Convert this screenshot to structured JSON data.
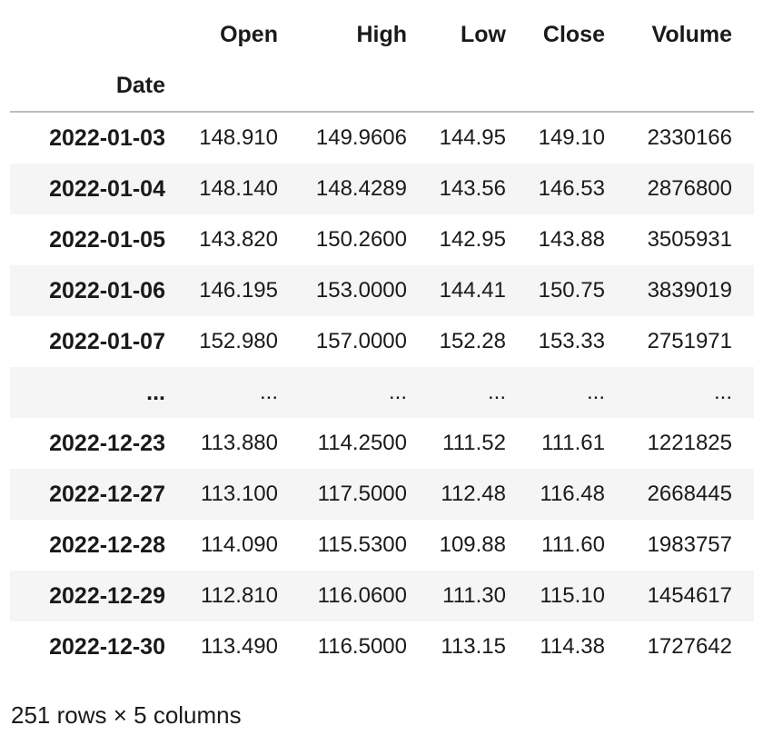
{
  "table": {
    "columns": [
      "Open",
      "High",
      "Low",
      "Close",
      "Volume"
    ],
    "index_name": "Date",
    "rows": [
      {
        "index": "2022-01-03",
        "values": [
          "148.910",
          "149.9606",
          "144.95",
          "149.10",
          "2330166"
        ]
      },
      {
        "index": "2022-01-04",
        "values": [
          "148.140",
          "148.4289",
          "143.56",
          "146.53",
          "2876800"
        ]
      },
      {
        "index": "2022-01-05",
        "values": [
          "143.820",
          "150.2600",
          "142.95",
          "143.88",
          "3505931"
        ]
      },
      {
        "index": "2022-01-06",
        "values": [
          "146.195",
          "153.0000",
          "144.41",
          "150.75",
          "3839019"
        ]
      },
      {
        "index": "2022-01-07",
        "values": [
          "152.980",
          "157.0000",
          "152.28",
          "153.33",
          "2751971"
        ]
      },
      {
        "index": "...",
        "values": [
          "...",
          "...",
          "...",
          "...",
          "..."
        ]
      },
      {
        "index": "2022-12-23",
        "values": [
          "113.880",
          "114.2500",
          "111.52",
          "111.61",
          "1221825"
        ]
      },
      {
        "index": "2022-12-27",
        "values": [
          "113.100",
          "117.5000",
          "112.48",
          "116.48",
          "2668445"
        ]
      },
      {
        "index": "2022-12-28",
        "values": [
          "114.090",
          "115.5300",
          "109.88",
          "111.60",
          "1983757"
        ]
      },
      {
        "index": "2022-12-29",
        "values": [
          "112.810",
          "116.0600",
          "111.30",
          "115.10",
          "1454617"
        ]
      },
      {
        "index": "2022-12-30",
        "values": [
          "113.490",
          "116.5000",
          "113.15",
          "114.38",
          "1727642"
        ]
      }
    ]
  },
  "footer": "251 rows × 5 columns"
}
